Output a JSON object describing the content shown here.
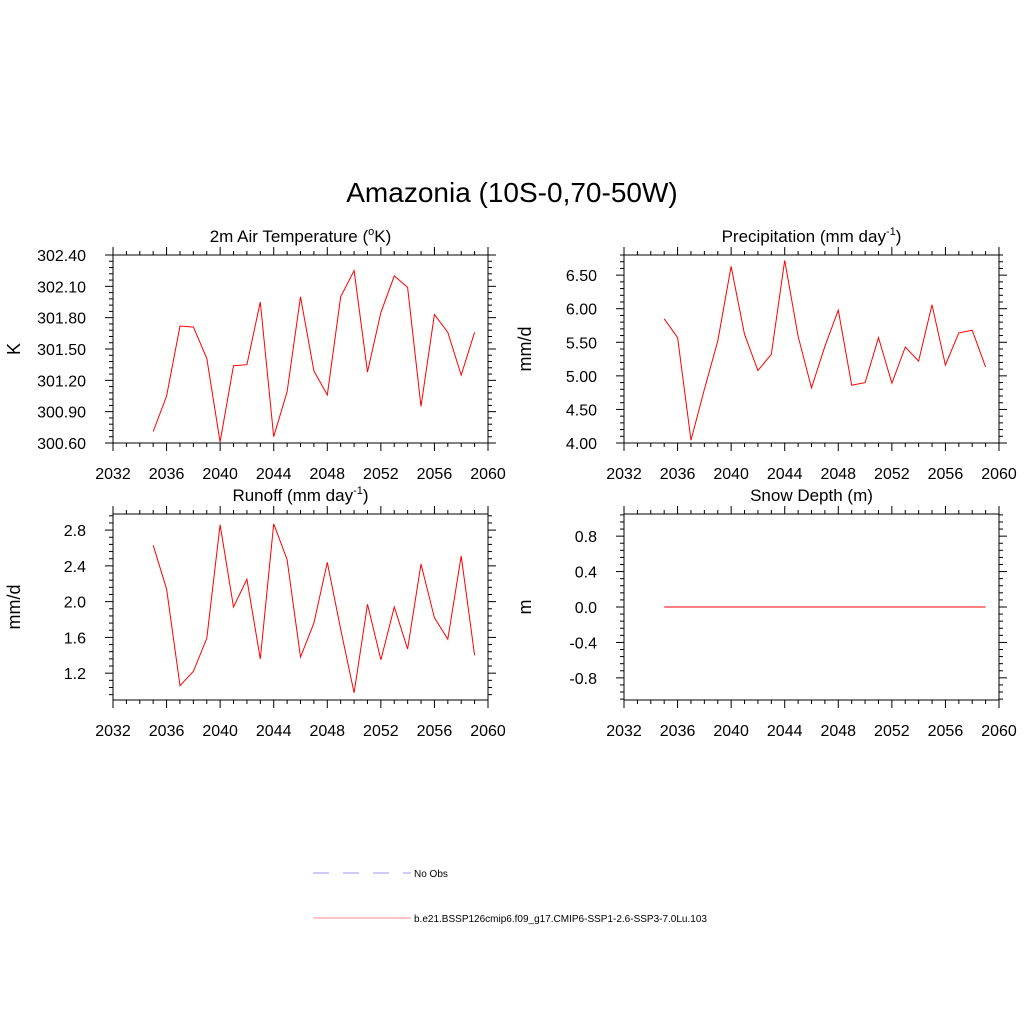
{
  "page": {
    "title": "Amazonia (10S-0,70-50W)"
  },
  "legend": {
    "obs_label": "No Obs",
    "obs_color": "#9999ee",
    "model_label": "b.e21.BSSP126cmip6.f09_g17.CMIP6-SSP1-2.6-SSP3-7.0Lu.103",
    "model_color": "#ff0000"
  },
  "chart_data": [
    {
      "type": "line",
      "title": "2m Air Temperature (",
      "title_sup_pre": "o",
      "title_main": "K)",
      "ylabel": "K",
      "xlim": [
        2032,
        2060
      ],
      "xticks": [
        2032,
        2036,
        2040,
        2044,
        2048,
        2052,
        2056,
        2060
      ],
      "ylim": [
        300.6,
        302.4
      ],
      "yticks": [
        "300.60",
        "300.90",
        "301.20",
        "301.50",
        "301.80",
        "302.10",
        "302.40"
      ],
      "color": "#ff0000",
      "x": [
        2035,
        2036,
        2037,
        2038,
        2039,
        2040,
        2041,
        2042,
        2043,
        2044,
        2045,
        2046,
        2047,
        2048,
        2049,
        2050,
        2051,
        2052,
        2053,
        2054,
        2055,
        2056,
        2057,
        2058,
        2059
      ],
      "y": [
        300.71,
        301.05,
        301.72,
        301.71,
        301.41,
        300.61,
        301.34,
        301.35,
        301.95,
        300.66,
        301.09,
        302.0,
        301.29,
        301.06,
        302.0,
        302.25,
        301.28,
        301.85,
        302.2,
        302.09,
        300.95,
        301.83,
        301.66,
        301.25,
        301.66
      ]
    },
    {
      "type": "line",
      "title": "Precipitation (mm day",
      "title_sup": "-1",
      "title_tail": ")",
      "ylabel": "mm/d",
      "xlim": [
        2032,
        2060
      ],
      "xticks": [
        2032,
        2036,
        2040,
        2044,
        2048,
        2052,
        2056,
        2060
      ],
      "ylim": [
        4.0,
        6.8
      ],
      "yticks": [
        "4.00",
        "4.50",
        "5.00",
        "5.50",
        "6.00",
        "6.50"
      ],
      "color": "#ff0000",
      "x": [
        2035,
        2036,
        2037,
        2038,
        2039,
        2040,
        2041,
        2042,
        2043,
        2044,
        2045,
        2046,
        2047,
        2048,
        2049,
        2050,
        2051,
        2052,
        2053,
        2054,
        2055,
        2056,
        2057,
        2058,
        2059
      ],
      "y": [
        5.85,
        5.57,
        4.04,
        4.8,
        5.52,
        6.63,
        5.62,
        5.08,
        5.32,
        6.72,
        5.59,
        4.82,
        5.44,
        5.98,
        4.86,
        4.9,
        5.57,
        4.89,
        5.43,
        5.22,
        6.06,
        5.16,
        5.64,
        5.68,
        5.13
      ]
    },
    {
      "type": "line",
      "title": "Runoff (mm day",
      "title_sup": "-1",
      "title_tail": ")",
      "ylabel": "mm/d",
      "xlim": [
        2032,
        2060
      ],
      "xticks": [
        2032,
        2036,
        2040,
        2044,
        2048,
        2052,
        2056,
        2060
      ],
      "ylim": [
        0.9,
        2.98
      ],
      "yticks": [
        "1.2",
        "1.6",
        "2.0",
        "2.4",
        "2.8"
      ],
      "color": "#ff0000",
      "x": [
        2035,
        2036,
        2037,
        2038,
        2039,
        2040,
        2041,
        2042,
        2043,
        2044,
        2045,
        2046,
        2047,
        2048,
        2049,
        2050,
        2051,
        2052,
        2053,
        2054,
        2055,
        2056,
        2057,
        2058,
        2059
      ],
      "y": [
        2.63,
        2.14,
        1.06,
        1.22,
        1.59,
        2.86,
        1.94,
        2.25,
        1.36,
        2.87,
        2.47,
        1.38,
        1.76,
        2.44,
        1.69,
        0.98,
        1.97,
        1.35,
        1.94,
        1.47,
        2.42,
        1.82,
        1.58,
        2.51,
        1.4
      ]
    },
    {
      "type": "line",
      "title": "Snow Depth (m)",
      "ylabel": "m",
      "xlim": [
        2032,
        2060
      ],
      "xticks": [
        2032,
        2036,
        2040,
        2044,
        2048,
        2052,
        2056,
        2060
      ],
      "ylim": [
        -1.05,
        1.05
      ],
      "yticks": [
        "-0.8",
        "-0.4",
        "0.0",
        "0.4",
        "0.8"
      ],
      "color": "#ff0000",
      "x": [
        2035,
        2036,
        2037,
        2038,
        2039,
        2040,
        2041,
        2042,
        2043,
        2044,
        2045,
        2046,
        2047,
        2048,
        2049,
        2050,
        2051,
        2052,
        2053,
        2054,
        2055,
        2056,
        2057,
        2058,
        2059
      ],
      "y": [
        0,
        0,
        0,
        0,
        0,
        0,
        0,
        0,
        0,
        0,
        0,
        0,
        0,
        0,
        0,
        0,
        0,
        0,
        0,
        0,
        0,
        0,
        0,
        0,
        0
      ]
    }
  ]
}
